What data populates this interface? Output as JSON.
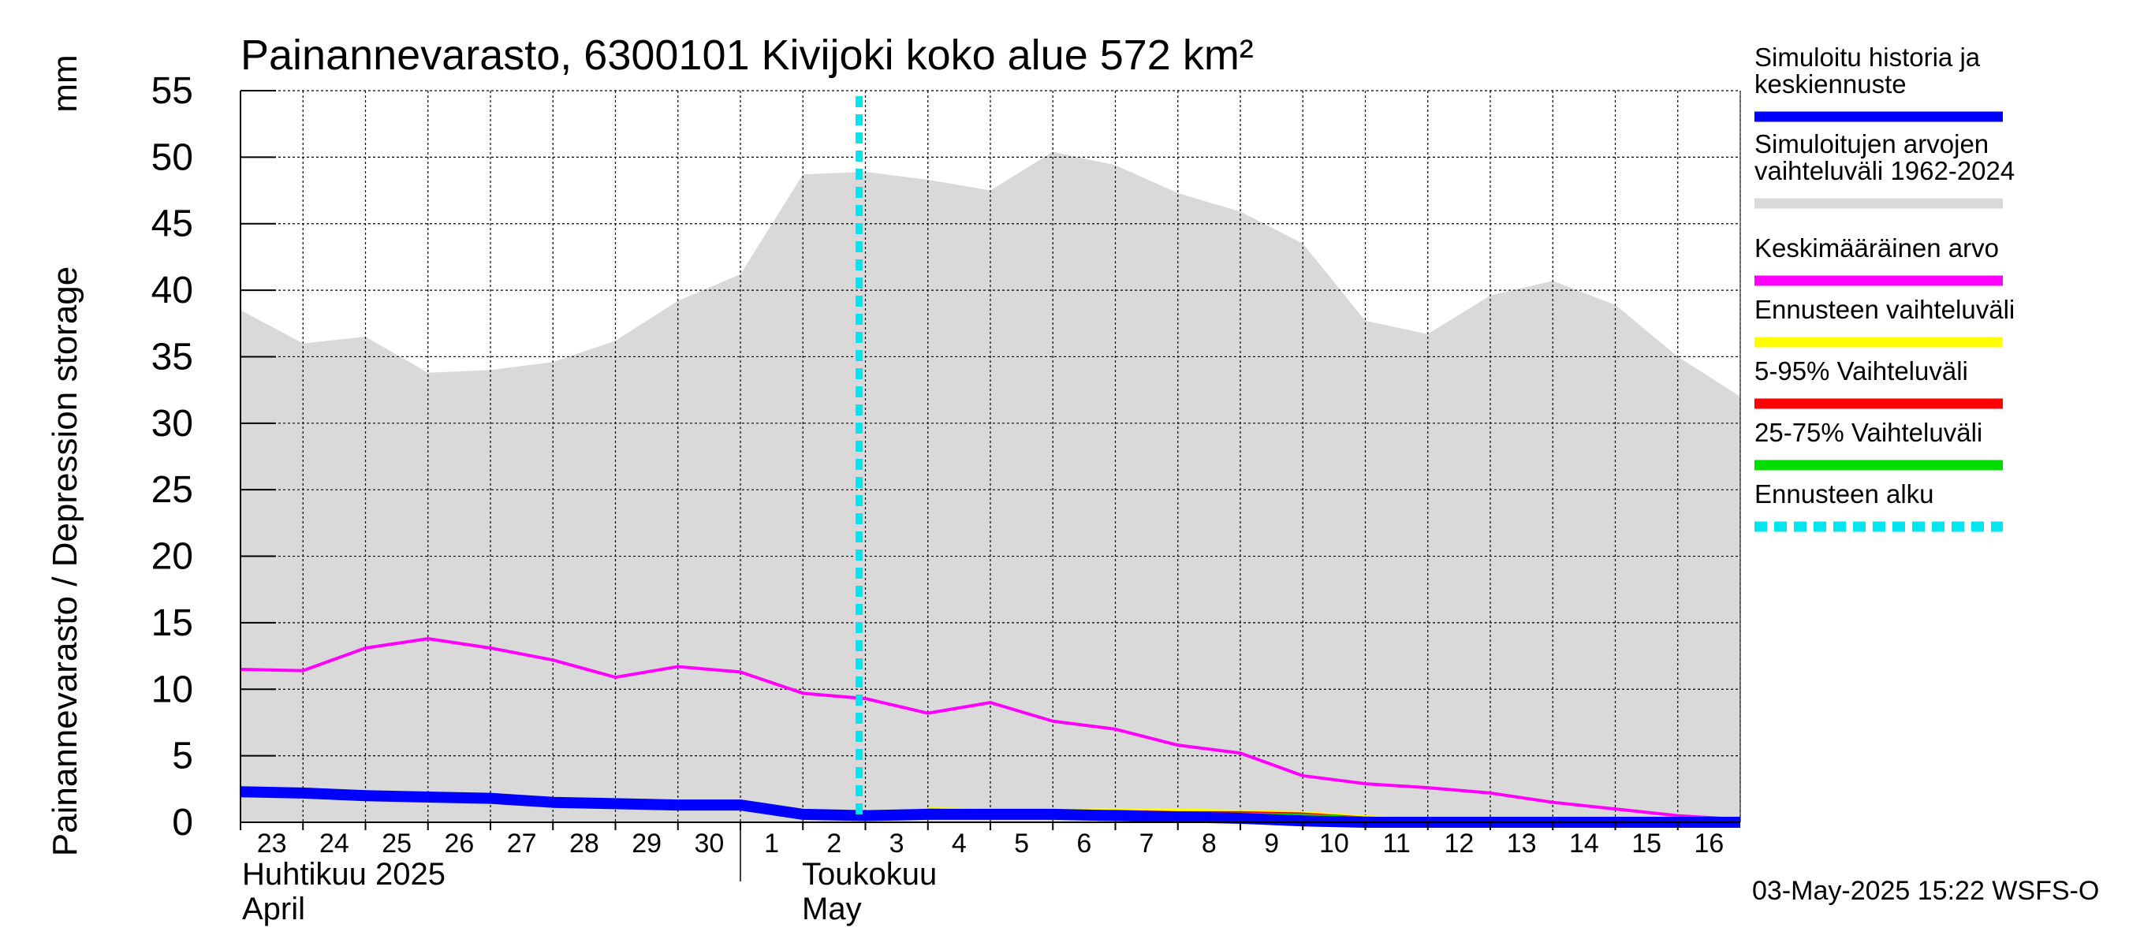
{
  "chart_data": {
    "type": "line",
    "title": "Painannevarasto, 6300101 Kivijoki koko alue 572 km²",
    "ylabel": "Painannevarasto / Depression storage",
    "yunit": "mm",
    "ylim": [
      0,
      55
    ],
    "yticks": [
      0,
      5,
      10,
      15,
      20,
      25,
      30,
      35,
      40,
      45,
      50,
      55
    ],
    "grid": true,
    "x_day_labels": [
      "23",
      "24",
      "25",
      "26",
      "27",
      "28",
      "29",
      "30",
      "1",
      "2",
      "3",
      "4",
      "5",
      "6",
      "7",
      "8",
      "9",
      "10",
      "11",
      "12",
      "13",
      "14",
      "15",
      "16"
    ],
    "month_labels": [
      {
        "fi": "Huhtikuu 2025",
        "en": "April"
      },
      {
        "fi": "Toukokuu",
        "en": "May"
      }
    ],
    "forecast_start_index": 9.9,
    "series": [
      {
        "name": "Simuloitujen arvojen vaihteluväli 1962-2024",
        "kind": "range",
        "color": "#d9d9d9",
        "upper": [
          38.5,
          36.0,
          36.5,
          33.8,
          34.0,
          34.6,
          36.2,
          39.2,
          41.2,
          48.7,
          48.9,
          48.3,
          47.5,
          50.4,
          49.4,
          47.3,
          45.9,
          43.5,
          37.7,
          36.7,
          39.6,
          40.7,
          38.9,
          35.0,
          32.0
        ],
        "lower": [
          0,
          0,
          0,
          0,
          0,
          0,
          0,
          0,
          0,
          0,
          0,
          0,
          0,
          0,
          0,
          0,
          0,
          0,
          0,
          0,
          0,
          0,
          0,
          0,
          0
        ]
      },
      {
        "name": "Keskimääräinen arvo",
        "kind": "line",
        "color": "#ff00ff",
        "values": [
          11.5,
          11.4,
          13.1,
          13.8,
          13.1,
          12.2,
          10.9,
          11.7,
          11.3,
          9.7,
          9.3,
          8.2,
          9.0,
          7.6,
          7.0,
          5.8,
          5.2,
          3.5,
          2.9,
          2.6,
          2.2,
          1.5,
          1.0,
          0.5,
          0.2
        ]
      },
      {
        "name": "Ennusteen vaihteluväli",
        "kind": "line",
        "color": "#ffff00",
        "start_index": 11,
        "values": [
          0.9,
          0.8,
          0.8,
          0.8,
          0.8,
          0.7,
          0.6,
          0.3,
          0.1,
          0.0,
          0.0,
          0.0,
          0.0,
          0.0
        ]
      },
      {
        "name": "5-95% Vaihteluväli",
        "kind": "line",
        "color": "#ff0000",
        "start_index": 11,
        "values": [
          0.8,
          0.7,
          0.7,
          0.7,
          0.6,
          0.6,
          0.5,
          0.2,
          0.1,
          0.0,
          0.0,
          0.0,
          0.0,
          0.0
        ]
      },
      {
        "name": "25-75% Vaihteluväli",
        "kind": "line",
        "color": "#00dd00",
        "start_index": 11,
        "values": [
          0.7,
          0.6,
          0.6,
          0.6,
          0.5,
          0.5,
          0.4,
          0.2,
          0.0,
          0.0,
          0.0,
          0.0,
          0.0,
          0.0
        ]
      },
      {
        "name": "Simuloitu historia ja keskiennuste",
        "kind": "line",
        "color": "#0000ff",
        "values": [
          2.3,
          2.2,
          2.0,
          1.9,
          1.8,
          1.5,
          1.4,
          1.3,
          1.3,
          0.6,
          0.5,
          0.6,
          0.6,
          0.6,
          0.5,
          0.4,
          0.3,
          0.1,
          0.0,
          0.0,
          0.0,
          0.0,
          0.0,
          0.0,
          0.0
        ]
      }
    ],
    "legend": [
      {
        "label_lines": [
          "Simuloitu historia ja",
          "keskiennuste"
        ],
        "color": "#0000ff",
        "style": "solid"
      },
      {
        "label_lines": [
          "Simuloitujen arvojen",
          "vaihteluväli 1962-2024"
        ],
        "color": "#d9d9d9",
        "style": "solid"
      },
      {
        "label_lines": [
          "Keskimääräinen arvo"
        ],
        "color": "#ff00ff",
        "style": "solid"
      },
      {
        "label_lines": [
          "Ennusteen vaihteluväli"
        ],
        "color": "#ffff00",
        "style": "solid"
      },
      {
        "label_lines": [
          "5-95% Vaihteluväli"
        ],
        "color": "#ff0000",
        "style": "solid"
      },
      {
        "label_lines": [
          "25-75% Vaihteluväli"
        ],
        "color": "#00dd00",
        "style": "solid"
      },
      {
        "label_lines": [
          "Ennusteen alku"
        ],
        "color": "#00e5ee",
        "style": "dashed"
      }
    ],
    "legend_position": "right",
    "footer": "03-May-2025 15:22 WSFS-O"
  }
}
